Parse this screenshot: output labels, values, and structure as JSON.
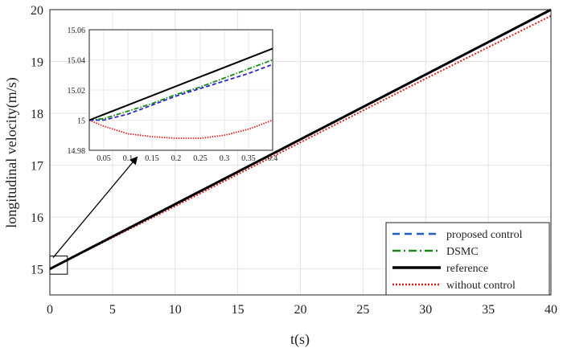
{
  "chart_data": {
    "main": {
      "type": "line",
      "xlabel": "t(s)",
      "ylabel": "longitudinal velocity(m/s)",
      "xlim": [
        0,
        40
      ],
      "ylim": [
        14.5,
        20
      ],
      "xticks": [
        0,
        5,
        10,
        15,
        20,
        25,
        30,
        35,
        40
      ],
      "yticks": [
        15,
        16,
        17,
        18,
        19,
        20
      ],
      "grid": true,
      "legend_position": "bottom-right",
      "series": [
        {
          "name": "proposed control",
          "style": "dashed",
          "color": "#1f5fbf",
          "x": [
            0,
            10,
            20,
            30,
            40
          ],
          "y": [
            15,
            16.24,
            17.49,
            18.74,
            19.99
          ]
        },
        {
          "name": "DSMC",
          "style": "dashdot",
          "color": "#1a8a1a",
          "x": [
            0,
            10,
            20,
            30,
            40
          ],
          "y": [
            15,
            16.245,
            17.495,
            18.745,
            19.995
          ]
        },
        {
          "name": "reference",
          "style": "solid",
          "color": "#000000",
          "x": [
            0,
            10,
            20,
            30,
            40
          ],
          "y": [
            15,
            16.25,
            17.5,
            18.75,
            20
          ]
        },
        {
          "name": "without control",
          "style": "dotted",
          "color": "#e02020",
          "x": [
            0,
            10,
            20,
            30,
            40
          ],
          "y": [
            15,
            16.21,
            17.44,
            18.67,
            19.88
          ]
        }
      ]
    },
    "inset": {
      "type": "line",
      "xlim": [
        0.02,
        0.4
      ],
      "ylim": [
        14.98,
        15.06
      ],
      "xticks": [
        0.05,
        0.1,
        0.15,
        0.2,
        0.25,
        0.3,
        0.35,
        0.4
      ],
      "xtick_labels": [
        "0.05",
        "0.1",
        "0.15",
        "0.2",
        "0.25",
        "0.3",
        "0.35",
        "0.4"
      ],
      "yticks": [
        14.98,
        15,
        15.02,
        15.04,
        15.06
      ],
      "ytick_labels": [
        "14.98",
        "15",
        "15.02",
        "15.04",
        "15.06"
      ],
      "grid": true,
      "series": [
        {
          "name": "reference",
          "x": [
            0.02,
            0.4
          ],
          "y": [
            15.0,
            15.0475
          ]
        },
        {
          "name": "DSMC",
          "x": [
            0.02,
            0.05,
            0.1,
            0.15,
            0.2,
            0.25,
            0.3,
            0.35,
            0.4
          ],
          "y": [
            15.0,
            15.001,
            15.006,
            15.011,
            15.017,
            15.022,
            15.028,
            15.034,
            15.04
          ]
        },
        {
          "name": "proposed control",
          "x": [
            0.02,
            0.05,
            0.1,
            0.15,
            0.2,
            0.25,
            0.3,
            0.35,
            0.4
          ],
          "y": [
            15.0,
            15.0,
            15.004,
            15.01,
            15.016,
            15.021,
            15.026,
            15.031,
            15.037
          ]
        },
        {
          "name": "without control",
          "x": [
            0.02,
            0.05,
            0.1,
            0.15,
            0.2,
            0.25,
            0.3,
            0.35,
            0.4
          ],
          "y": [
            15.0,
            14.996,
            14.991,
            14.989,
            14.988,
            14.988,
            14.99,
            14.994,
            15.0
          ]
        }
      ]
    },
    "zoom_box": {
      "x": [
        0,
        1.4
      ],
      "y": [
        14.9,
        15.25
      ]
    }
  }
}
